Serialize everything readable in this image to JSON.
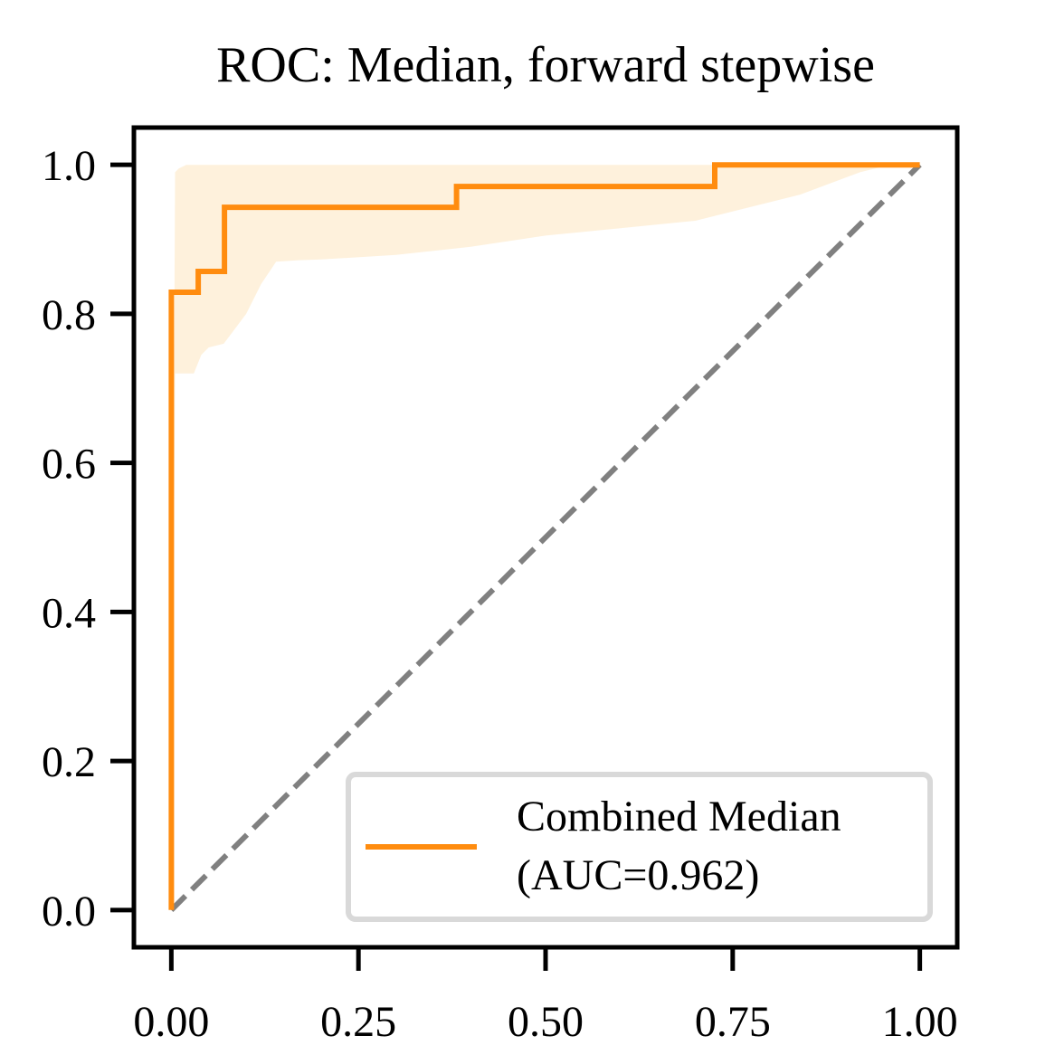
{
  "chart_data": {
    "type": "line",
    "title": "ROC: Median, forward stepwise",
    "xlabel": "",
    "ylabel": "",
    "xlim": [
      -0.05,
      1.05
    ],
    "ylim": [
      -0.05,
      1.05
    ],
    "x_ticks": [
      0.0,
      0.25,
      0.5,
      0.75,
      1.0
    ],
    "x_tick_labels": [
      "0.00",
      "0.25",
      "0.50",
      "0.75",
      "1.00"
    ],
    "y_ticks": [
      0.0,
      0.2,
      0.4,
      0.6,
      0.8,
      1.0
    ],
    "y_tick_labels": [
      "0.0",
      "0.2",
      "0.4",
      "0.6",
      "0.8",
      "1.0"
    ],
    "grid": false,
    "legend_position": "lower-right",
    "legend": {
      "lines": [
        "Combined Median",
        "(AUC=0.962)"
      ]
    },
    "series": [
      {
        "name": "Combined Median (AUC=0.962)",
        "color": "#ff8c0f",
        "x": [
          0.0,
          0.0,
          0.0,
          0.036,
          0.036,
          0.071,
          0.071,
          0.381,
          0.381,
          0.726,
          0.726,
          1.0
        ],
        "y": [
          0.0,
          0.829,
          0.829,
          0.829,
          0.857,
          0.857,
          0.943,
          0.943,
          0.971,
          0.971,
          1.0,
          1.0
        ]
      }
    ],
    "band": {
      "color": "#fde6c0",
      "x": [
        0.0,
        0.005,
        0.01,
        0.02,
        0.03,
        0.04,
        0.05,
        0.07,
        0.1,
        0.12,
        0.14,
        0.17,
        0.2,
        0.3,
        0.4,
        0.5,
        0.6,
        0.7,
        0.76,
        0.8,
        0.84,
        0.88,
        0.92,
        0.96,
        1.0
      ],
      "lower": [
        0.0,
        0.72,
        0.72,
        0.72,
        0.72,
        0.745,
        0.755,
        0.76,
        0.8,
        0.84,
        0.87,
        0.872,
        0.873,
        0.879,
        0.89,
        0.905,
        0.915,
        0.925,
        0.94,
        0.95,
        0.96,
        0.975,
        0.99,
        1.0,
        1.0
      ],
      "upper": [
        0.0,
        0.99,
        0.995,
        1.0,
        1.0,
        1.0,
        1.0,
        1.0,
        1.0,
        1.0,
        1.0,
        1.0,
        1.0,
        1.0,
        1.0,
        1.0,
        1.0,
        1.0,
        1.0,
        1.0,
        1.0,
        1.0,
        1.0,
        1.0,
        1.0
      ]
    },
    "reference_line": {
      "color": "#808080",
      "style": "dashed",
      "x": [
        0.0,
        1.0
      ],
      "y": [
        0.0,
        1.0
      ]
    }
  }
}
